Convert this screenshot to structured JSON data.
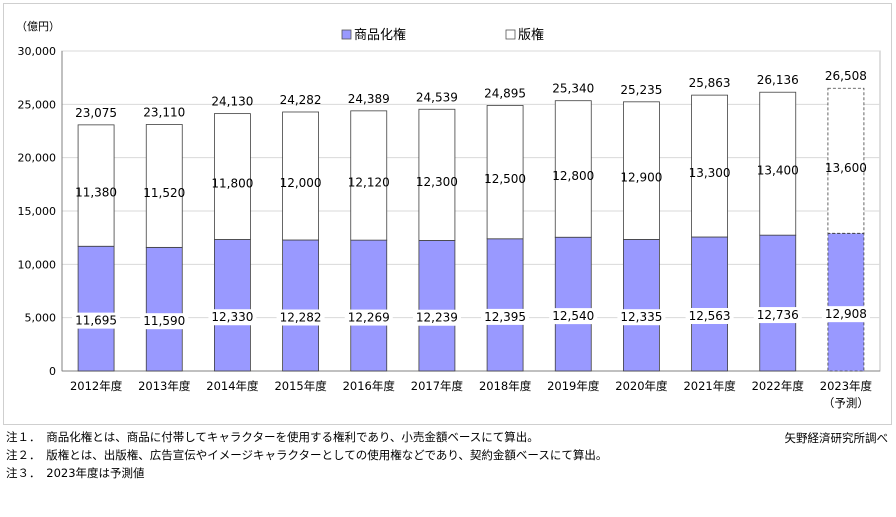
{
  "chart_data": {
    "type": "bar",
    "stacked": true,
    "y_unit_label": "（億円）",
    "categories": [
      "2012年度",
      "2013年度",
      "2014年度",
      "2015年度",
      "2016年度",
      "2017年度",
      "2018年度",
      "2019年度",
      "2020年度",
      "2021年度",
      "2022年度",
      "2023年度"
    ],
    "category_sublabels": [
      "",
      "",
      "",
      "",
      "",
      "",
      "",
      "",
      "",
      "",
      "",
      "（予測）"
    ],
    "series": [
      {
        "name": "商品化権",
        "color": "#9999ff",
        "values": [
          11695,
          11590,
          12330,
          12282,
          12269,
          12239,
          12395,
          12540,
          12335,
          12563,
          12736,
          12908
        ],
        "labels": [
          "11,695",
          "11,590",
          "12,330",
          "12,282",
          "12,269",
          "12,239",
          "12,395",
          "12,540",
          "12,335",
          "12,563",
          "12,736",
          "12,908"
        ]
      },
      {
        "name": "版権",
        "color": "#ffffff",
        "values": [
          11380,
          11520,
          11800,
          12000,
          12120,
          12300,
          12500,
          12800,
          12900,
          13300,
          13400,
          13600
        ],
        "labels": [
          "11,380",
          "11,520",
          "11,800",
          "12,000",
          "12,120",
          "12,300",
          "12,500",
          "12,800",
          "12,900",
          "13,300",
          "13,400",
          "13,600"
        ]
      }
    ],
    "totals": [
      23075,
      23110,
      24130,
      24282,
      24389,
      24539,
      24895,
      25340,
      25235,
      25863,
      26136,
      26508
    ],
    "total_labels": [
      "23,075",
      "23,110",
      "24,130",
      "24,282",
      "24,389",
      "24,539",
      "24,895",
      "25,340",
      "25,235",
      "25,863",
      "26,136",
      "26,508"
    ],
    "forecast_index": 11,
    "ylim": [
      0,
      30000
    ],
    "yticks": [
      0,
      5000,
      10000,
      15000,
      20000,
      25000,
      30000
    ],
    "ytick_labels": [
      "0",
      "5,000",
      "10,000",
      "15,000",
      "20,000",
      "25,000",
      "30,000"
    ],
    "legend_position": "top-center",
    "grid": true
  },
  "notes": [
    "注１．　商品化権とは、商品に付帯してキャラクターを使用する権利であり、小売金額ベースにて算出。",
    "注２．　版権とは、出版権、広告宣伝やイメージキャラクターとしての使用権などであり、契約金額ベースにて算出。",
    "注３．　2023年度は予測値"
  ],
  "source": "矢野経済研究所調べ"
}
